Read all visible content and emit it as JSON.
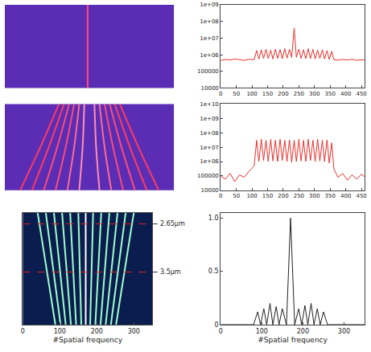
{
  "chart_data": [
    {
      "type": "line",
      "tick_labels": false,
      "xlim": [
        0,
        1
      ],
      "ylim": [
        0,
        1
      ],
      "series": [
        {
          "x": [
            0.49,
            0.49
          ],
          "values": [
            0,
            1
          ],
          "color": "#ff4a78"
        }
      ]
    },
    {
      "type": "line",
      "log": "y",
      "grid": false,
      "xlim": [
        0,
        460
      ],
      "ylim": [
        10000,
        1000000000
      ],
      "xticks": [
        0,
        50,
        100,
        150,
        200,
        250,
        300,
        350,
        400,
        450
      ],
      "yticks": [
        10000,
        100000,
        {
          "value": 1000000,
          "label": "1e+06"
        },
        {
          "value": 10000000,
          "label": "1e+07"
        },
        {
          "value": 100000000,
          "label": "1e+08"
        },
        {
          "value": 1000000000,
          "label": "1e+09"
        }
      ],
      "series": [
        {
          "color": "#e8302c",
          "x": [
            0,
            15,
            30,
            45,
            60,
            75,
            90,
            107,
            115,
            122,
            130,
            137,
            145,
            152,
            160,
            167,
            175,
            182,
            190,
            197,
            205,
            212,
            220,
            227,
            235,
            242,
            250,
            257,
            265,
            272,
            280,
            287,
            295,
            302,
            310,
            317,
            325,
            332,
            340,
            347,
            355,
            362,
            375,
            390,
            405,
            420,
            435,
            450,
            460
          ],
          "values": [
            450000,
            520000,
            480000,
            550000,
            500000,
            460000,
            530000,
            500000,
            1800000,
            550000,
            2000000,
            600000,
            2100000,
            600000,
            1900000,
            550000,
            2200000,
            600000,
            2000000,
            580000,
            2300000,
            620000,
            2100000,
            700000,
            40000000,
            700000,
            2200000,
            600000,
            2000000,
            580000,
            2300000,
            600000,
            2100000,
            560000,
            1900000,
            600000,
            2000000,
            550000,
            1800000,
            520000,
            1600000,
            500000,
            470000,
            520000,
            480000,
            540000,
            460000,
            500000,
            480000
          ]
        }
      ]
    },
    {
      "type": "line",
      "tick_labels": false,
      "xlim": [
        0,
        1
      ],
      "ylim": [
        0,
        1
      ],
      "series": [
        {
          "x": [
            0.47,
            0.46,
            0.44
          ],
          "values": [
            1,
            0.5,
            0
          ],
          "color": "#ff8fb0"
        },
        {
          "x": [
            0.44,
            0.41,
            0.37
          ],
          "values": [
            1,
            0.5,
            0
          ],
          "color": "#ff6a90"
        },
        {
          "x": [
            0.41,
            0.36,
            0.3
          ],
          "values": [
            1,
            0.5,
            0
          ],
          "color": "#ff4a78"
        },
        {
          "x": [
            0.38,
            0.31,
            0.23
          ],
          "values": [
            1,
            0.5,
            0
          ],
          "color": "#ff4a78"
        },
        {
          "x": [
            0.35,
            0.26,
            0.16
          ],
          "values": [
            1,
            0.5,
            0
          ],
          "color": "#ff3a60"
        },
        {
          "x": [
            0.32,
            0.21,
            0.09
          ],
          "values": [
            1,
            0.5,
            0
          ],
          "color": "#ff3a60"
        },
        {
          "x": [
            0.53,
            0.54,
            0.56
          ],
          "values": [
            1,
            0.5,
            0
          ],
          "color": "#ff8fb0"
        },
        {
          "x": [
            0.56,
            0.59,
            0.63
          ],
          "values": [
            1,
            0.5,
            0
          ],
          "color": "#ff6a90"
        },
        {
          "x": [
            0.59,
            0.64,
            0.7
          ],
          "values": [
            1,
            0.5,
            0
          ],
          "color": "#ff4a78"
        },
        {
          "x": [
            0.62,
            0.69,
            0.77
          ],
          "values": [
            1,
            0.5,
            0
          ],
          "color": "#ff4a78"
        },
        {
          "x": [
            0.65,
            0.74,
            0.84
          ],
          "values": [
            1,
            0.5,
            0
          ],
          "color": "#ff3a60"
        },
        {
          "x": [
            0.68,
            0.79,
            0.91
          ],
          "values": [
            1,
            0.5,
            0
          ],
          "color": "#ff3a60"
        }
      ]
    },
    {
      "type": "line",
      "log": "y",
      "grid": false,
      "xlim": [
        0,
        460
      ],
      "ylim": [
        10000,
        10000000000
      ],
      "xticks": [
        0,
        50,
        100,
        150,
        200,
        250,
        300,
        350,
        400,
        450
      ],
      "yticks": [
        10000,
        100000,
        {
          "value": 1000000,
          "label": "1e+06"
        },
        {
          "value": 10000000,
          "label": "1e+07"
        },
        {
          "value": 100000000,
          "label": "1e+08"
        },
        {
          "value": 1000000000,
          "label": "1e+09"
        },
        {
          "value": 10000000000,
          "label": "1e+10"
        }
      ],
      "series": [
        {
          "color": "#e8302c",
          "x": [
            0,
            15,
            30,
            45,
            60,
            75,
            90,
            107,
            115,
            122,
            130,
            137,
            145,
            152,
            160,
            167,
            175,
            182,
            190,
            197,
            205,
            212,
            220,
            227,
            235,
            242,
            250,
            257,
            265,
            272,
            280,
            287,
            295,
            302,
            310,
            317,
            325,
            332,
            340,
            347,
            355,
            362,
            375,
            390,
            405,
            420,
            435,
            450,
            460
          ],
          "values": [
            100000,
            60000,
            150000,
            40000,
            120000,
            80000,
            200000,
            500000,
            30000000,
            1000000,
            35000000,
            1200000,
            30000000,
            1000000,
            35000000,
            1100000,
            30000000,
            1000000,
            35000000,
            1200000,
            30000000,
            1000000,
            32000000,
            900000,
            30000000,
            1000000,
            35000000,
            1100000,
            30000000,
            1000000,
            35000000,
            1200000,
            30000000,
            1000000,
            35000000,
            1100000,
            30000000,
            1000000,
            32000000,
            800000,
            20000000,
            300000,
            80000,
            150000,
            50000,
            120000,
            60000,
            130000,
            90000
          ]
        }
      ]
    },
    {
      "type": "line",
      "tick_labels": "x",
      "xlim": [
        0,
        350
      ],
      "ylim": [
        0,
        1
      ],
      "xticks": [
        0,
        100,
        200,
        300
      ],
      "xlabel": "#Spatial frequency",
      "annotations": [
        {
          "y": 0.9,
          "text": "2.65μm"
        },
        {
          "y": 0.47,
          "text": "3.5μm"
        }
      ],
      "series": [
        {
          "x": [
            150,
            158
          ],
          "values": [
            1,
            0
          ],
          "color": "#9dffc8"
        },
        {
          "x": [
            128,
            144
          ],
          "values": [
            1,
            0
          ],
          "color": "#9dffc8"
        },
        {
          "x": [
            106,
            130
          ],
          "values": [
            1,
            0
          ],
          "color": "#9dffc8"
        },
        {
          "x": [
            84,
            116
          ],
          "values": [
            1,
            0
          ],
          "color": "#9dffc8"
        },
        {
          "x": [
            62,
            102
          ],
          "values": [
            1,
            0
          ],
          "color": "#9dffc8"
        },
        {
          "x": [
            40,
            88
          ],
          "values": [
            1,
            0
          ],
          "color": "#9dffc8"
        },
        {
          "x": [
            170,
            170
          ],
          "values": [
            1,
            0
          ],
          "color": "#ffffff"
        },
        {
          "x": [
            190,
            182
          ],
          "values": [
            1,
            0
          ],
          "color": "#9dffc8"
        },
        {
          "x": [
            212,
            196
          ],
          "values": [
            1,
            0
          ],
          "color": "#9dffc8"
        },
        {
          "x": [
            234,
            210
          ],
          "values": [
            1,
            0
          ],
          "color": "#9dffc8"
        },
        {
          "x": [
            256,
            224
          ],
          "values": [
            1,
            0
          ],
          "color": "#9dffc8"
        },
        {
          "x": [
            278,
            238
          ],
          "values": [
            1,
            0
          ],
          "color": "#9dffc8"
        },
        {
          "x": [
            300,
            252
          ],
          "values": [
            1,
            0
          ],
          "color": "#9dffc8"
        }
      ]
    },
    {
      "type": "line",
      "grid": false,
      "xlim": [
        0,
        350
      ],
      "ylim": [
        0,
        1.05
      ],
      "xticks": [
        0,
        100,
        200,
        300
      ],
      "yticks": [
        0,
        0.5,
        {
          "value": 1,
          "label": "1.0"
        }
      ],
      "xlabel": "#Spatial frequency",
      "series": [
        {
          "color": "#222222",
          "x": [
            0,
            80,
            90,
            97,
            105,
            112,
            120,
            127,
            135,
            142,
            150,
            160,
            170,
            180,
            190,
            197,
            205,
            212,
            220,
            227,
            235,
            242,
            250,
            260,
            350
          ],
          "values": [
            0,
            0,
            0.12,
            0,
            0.15,
            0,
            0.2,
            0,
            0.17,
            0,
            0.15,
            0,
            1,
            0,
            0.15,
            0,
            0.18,
            0,
            0.2,
            0,
            0.15,
            0,
            0.12,
            0,
            0
          ]
        }
      ]
    }
  ]
}
